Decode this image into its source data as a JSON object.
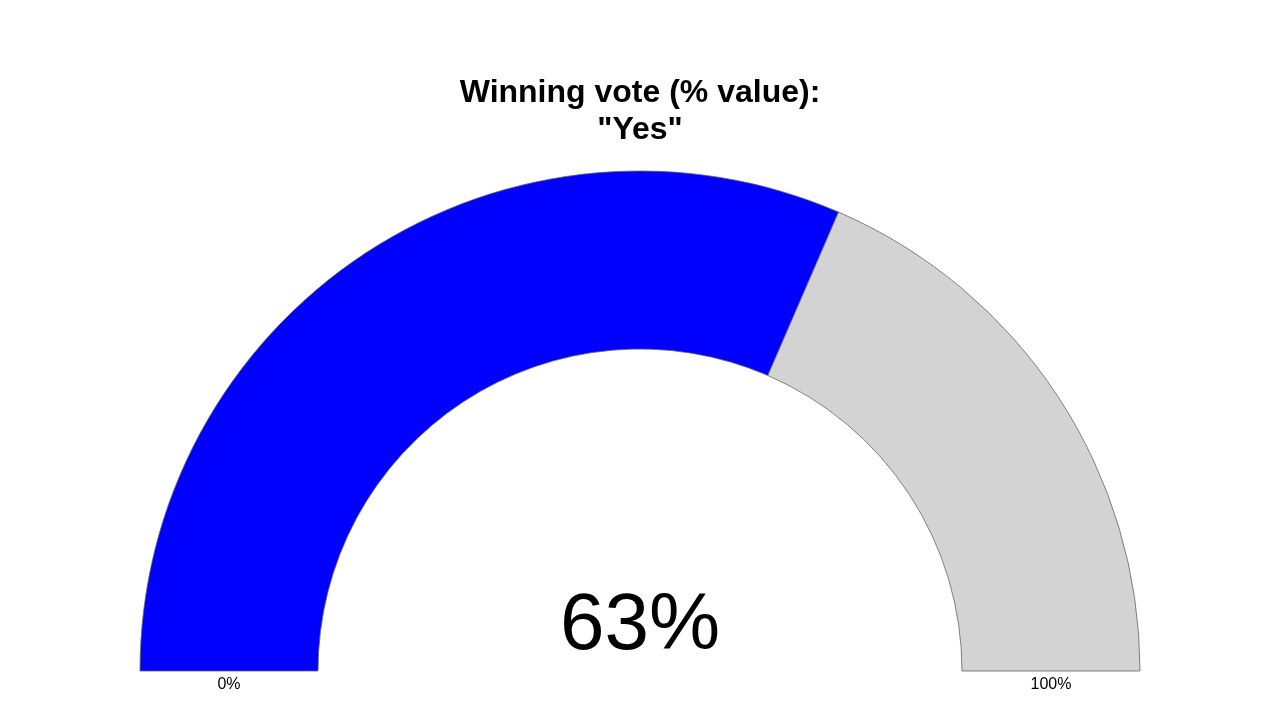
{
  "chart_data": {
    "type": "donut",
    "title": "Winning vote (% value):\n\"Yes\"",
    "categories": [
      null,
      null
    ],
    "values": [
      63,
      37
    ],
    "colors": [
      "#0000ff",
      "#d3d3d3"
    ],
    "value_labels": [
      "63%",
      null
    ],
    "annotations": [
      "0%",
      "100%"
    ]
  }
}
